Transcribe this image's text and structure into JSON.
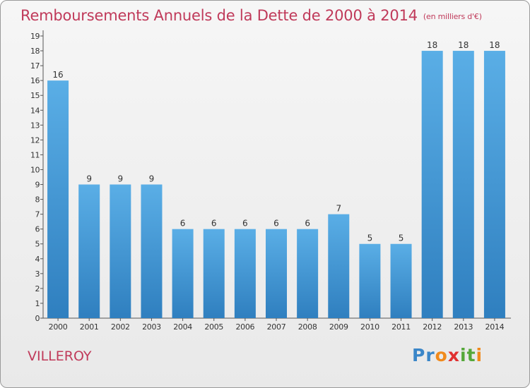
{
  "chart_data": {
    "type": "bar",
    "title": "Remboursements Annuels de la Dette de 2000 à 2014",
    "subtitle": "(en milliers d'€)",
    "categories": [
      "2000",
      "2001",
      "2002",
      "2003",
      "2004",
      "2005",
      "2006",
      "2007",
      "2008",
      "2009",
      "2010",
      "2011",
      "2012",
      "2013",
      "2014"
    ],
    "values": [
      16,
      9,
      9,
      9,
      6,
      6,
      6,
      6,
      6,
      7,
      5,
      5,
      18,
      18,
      18
    ],
    "ylim": [
      0,
      19
    ],
    "yticks": [
      0,
      1,
      2,
      3,
      4,
      5,
      6,
      7,
      8,
      9,
      10,
      11,
      12,
      13,
      14,
      15,
      16,
      17,
      18,
      19
    ],
    "grid": false,
    "colors": {
      "bar_top": "#5aaee6",
      "bar_bottom": "#2f7fbf",
      "title": "#c03a5a"
    }
  },
  "commune": "VILLEROY",
  "logo": {
    "letters": [
      "P",
      "r",
      "o",
      "x",
      "i",
      "t",
      "i"
    ],
    "colors": [
      "#3a86c8",
      "#3a86c8",
      "#f08a1c",
      "#e03030",
      "#55a83a",
      "#55a83a",
      "#f08a1c"
    ]
  }
}
